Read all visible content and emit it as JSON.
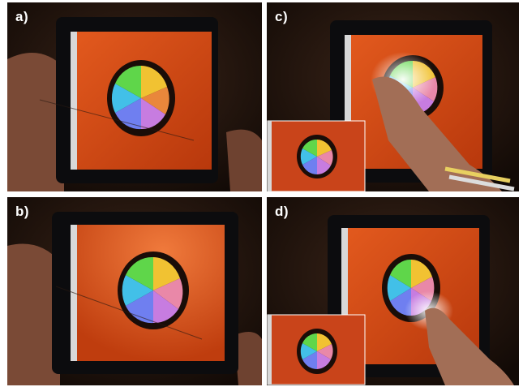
{
  "panels": [
    {
      "id": "a",
      "label": "a)"
    },
    {
      "id": "b",
      "label": "b)"
    },
    {
      "id": "c",
      "label": "c)"
    },
    {
      "id": "d",
      "label": "d)"
    }
  ],
  "colors": {
    "background": "#1a0f0a",
    "screen_orange": "#d94a14",
    "tablet_bezel": "#0c0c0e",
    "skin": "#8a5a44",
    "wheel_outline": "#1a0d08",
    "highlight": "#ffffff"
  },
  "icons": [
    "tablet-photo",
    "hand-icon",
    "color-wheel",
    "sidebar-strip",
    "finger-touch-icon",
    "inset-thumbnail"
  ]
}
